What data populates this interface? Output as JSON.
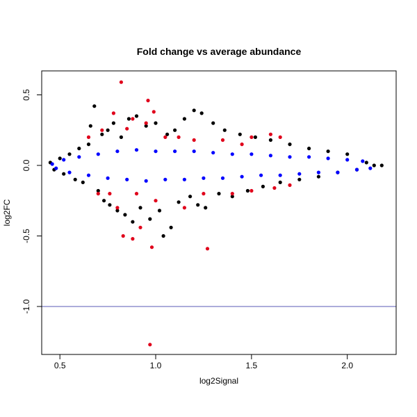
{
  "chart_data": {
    "type": "scatter",
    "title": "Fold change vs average abundance",
    "xlabel": "log2Signal",
    "ylabel": "log2FC",
    "xlim": [
      0.405,
      2.255
    ],
    "ylim": [
      -1.34,
      0.67
    ],
    "xticks": [
      0.5,
      1.0,
      1.5,
      2.0
    ],
    "xtick_labels": [
      "0.5",
      "1.0",
      "1.5",
      "2.0"
    ],
    "yticks": [
      -1.0,
      -0.5,
      0.0,
      0.5
    ],
    "ytick_labels": [
      "-1.0",
      "-0.5",
      "0.0",
      "0.5"
    ],
    "hline": {
      "y": -1.0,
      "color": "#5a5ab4"
    },
    "grid": false,
    "legend": "none",
    "series": [
      {
        "color": "#000000",
        "points": [
          [
            0.45,
            0.02
          ],
          [
            0.47,
            -0.03
          ],
          [
            0.5,
            0.05
          ],
          [
            0.52,
            -0.06
          ],
          [
            0.55,
            0.08
          ],
          [
            0.58,
            -0.1
          ],
          [
            0.6,
            0.12
          ],
          [
            0.62,
            -0.12
          ],
          [
            0.65,
            0.15
          ],
          [
            0.66,
            0.28
          ],
          [
            0.68,
            0.42
          ],
          [
            0.7,
            -0.18
          ],
          [
            0.72,
            0.22
          ],
          [
            0.73,
            -0.25
          ],
          [
            0.75,
            0.25
          ],
          [
            0.76,
            -0.28
          ],
          [
            0.78,
            0.3
          ],
          [
            0.8,
            -0.32
          ],
          [
            0.82,
            0.2
          ],
          [
            0.84,
            -0.35
          ],
          [
            0.86,
            0.33
          ],
          [
            0.88,
            -0.4
          ],
          [
            0.9,
            0.35
          ],
          [
            0.92,
            -0.3
          ],
          [
            0.95,
            0.28
          ],
          [
            0.97,
            -0.38
          ],
          [
            1.0,
            0.3
          ],
          [
            1.02,
            -0.32
          ],
          [
            1.04,
            -0.5
          ],
          [
            1.06,
            0.22
          ],
          [
            1.08,
            -0.44
          ],
          [
            1.1,
            0.25
          ],
          [
            1.12,
            -0.26
          ],
          [
            1.15,
            0.33
          ],
          [
            1.18,
            -0.22
          ],
          [
            1.2,
            0.39
          ],
          [
            1.22,
            -0.28
          ],
          [
            1.24,
            0.37
          ],
          [
            1.26,
            -0.3
          ],
          [
            1.3,
            0.3
          ],
          [
            1.33,
            -0.2
          ],
          [
            1.36,
            0.25
          ],
          [
            1.4,
            -0.22
          ],
          [
            1.44,
            0.22
          ],
          [
            1.48,
            -0.18
          ],
          [
            1.52,
            0.2
          ],
          [
            1.56,
            -0.15
          ],
          [
            1.6,
            0.18
          ],
          [
            1.65,
            -0.12
          ],
          [
            1.7,
            0.15
          ],
          [
            1.75,
            -0.1
          ],
          [
            1.8,
            0.12
          ],
          [
            1.85,
            -0.08
          ],
          [
            1.9,
            0.1
          ],
          [
            1.95,
            -0.05
          ],
          [
            2.0,
            0.08
          ],
          [
            2.05,
            -0.03
          ],
          [
            2.1,
            0.02
          ],
          [
            2.14,
            0.0
          ],
          [
            2.18,
            0.0
          ]
        ]
      },
      {
        "color": "#0000ff",
        "points": [
          [
            0.46,
            0.01
          ],
          [
            0.48,
            -0.02
          ],
          [
            0.52,
            0.04
          ],
          [
            0.55,
            -0.05
          ],
          [
            0.6,
            0.06
          ],
          [
            0.65,
            -0.07
          ],
          [
            0.7,
            0.08
          ],
          [
            0.75,
            -0.09
          ],
          [
            0.8,
            0.1
          ],
          [
            0.85,
            -0.1
          ],
          [
            0.9,
            0.11
          ],
          [
            0.95,
            -0.11
          ],
          [
            1.0,
            0.1
          ],
          [
            1.05,
            -0.1
          ],
          [
            1.1,
            0.1
          ],
          [
            1.15,
            -0.1
          ],
          [
            1.2,
            0.1
          ],
          [
            1.25,
            -0.09
          ],
          [
            1.3,
            0.09
          ],
          [
            1.35,
            -0.09
          ],
          [
            1.4,
            0.08
          ],
          [
            1.45,
            -0.08
          ],
          [
            1.5,
            0.08
          ],
          [
            1.55,
            -0.07
          ],
          [
            1.6,
            0.07
          ],
          [
            1.65,
            -0.07
          ],
          [
            1.7,
            0.06
          ],
          [
            1.75,
            -0.06
          ],
          [
            1.8,
            0.06
          ],
          [
            1.85,
            -0.05
          ],
          [
            1.9,
            0.05
          ],
          [
            1.95,
            -0.05
          ],
          [
            2.0,
            0.04
          ],
          [
            2.05,
            -0.03
          ],
          [
            2.08,
            0.03
          ],
          [
            2.12,
            -0.02
          ]
        ]
      },
      {
        "color": "#e0001b",
        "points": [
          [
            0.82,
            0.59
          ],
          [
            0.96,
            0.46
          ],
          [
            0.99,
            0.38
          ],
          [
            0.95,
            0.3
          ],
          [
            0.88,
            0.33
          ],
          [
            0.78,
            0.37
          ],
          [
            0.85,
            0.26
          ],
          [
            0.72,
            0.25
          ],
          [
            0.83,
            -0.5
          ],
          [
            0.88,
            -0.52
          ],
          [
            0.92,
            -0.44
          ],
          [
            0.98,
            -0.58
          ],
          [
            1.27,
            -0.59
          ],
          [
            0.97,
            -1.27
          ],
          [
            0.76,
            -0.2
          ],
          [
            0.8,
            -0.3
          ],
          [
            0.9,
            -0.2
          ],
          [
            1.0,
            -0.25
          ],
          [
            1.05,
            0.2
          ],
          [
            1.12,
            0.2
          ],
          [
            1.2,
            0.18
          ],
          [
            1.25,
            -0.2
          ],
          [
            1.35,
            0.18
          ],
          [
            1.4,
            -0.2
          ],
          [
            1.5,
            0.2
          ],
          [
            1.6,
            0.22
          ],
          [
            1.65,
            0.2
          ],
          [
            1.62,
            -0.16
          ],
          [
            1.7,
            -0.14
          ],
          [
            1.5,
            -0.18
          ],
          [
            1.45,
            0.15
          ],
          [
            0.65,
            0.2
          ],
          [
            0.7,
            -0.2
          ],
          [
            1.15,
            -0.3
          ]
        ]
      }
    ]
  }
}
